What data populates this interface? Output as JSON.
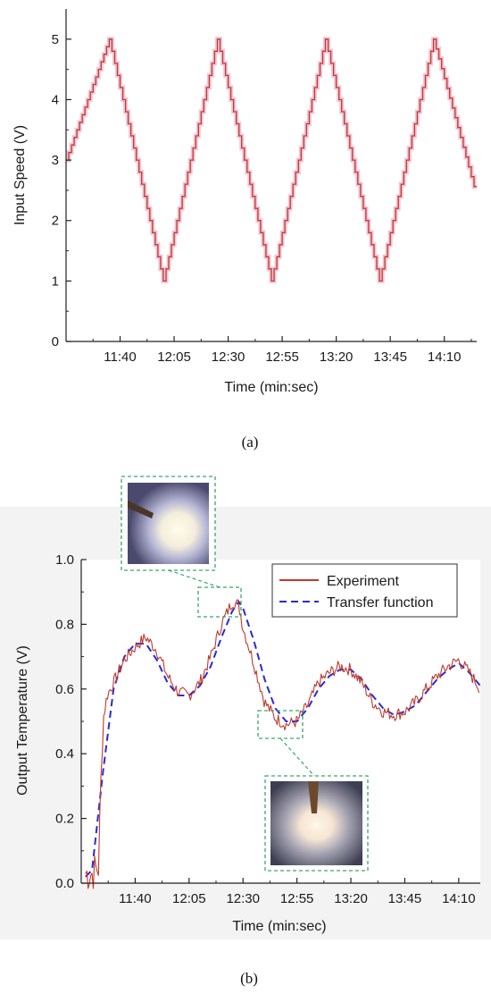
{
  "colors": {
    "experiment": "#c0392b",
    "transfer": "#2a2ad4",
    "inset_border": "#3aa66a",
    "axis": "#222222",
    "panel_b_bg": "#f3f3f3"
  },
  "captions": {
    "a": "(a)",
    "b": "(b)"
  },
  "chart_data": [
    {
      "panel": "a",
      "type": "line",
      "title": "",
      "xlabel": "Time (min:sec)",
      "ylabel": "Input Speed (V)",
      "xlim": [
        "11:15",
        "14:25"
      ],
      "ylim": [
        0,
        5.5
      ],
      "xticks": [
        "11:40",
        "12:05",
        "12:30",
        "12:55",
        "13:20",
        "13:45",
        "14:10"
      ],
      "yticks": [
        "0",
        "1",
        "2",
        "3",
        "4",
        "5"
      ],
      "grid": false,
      "series": [
        {
          "style": "staircase",
          "x": [
            "11:15",
            "11:35",
            "12:00",
            "12:25",
            "12:50",
            "13:15",
            "13:40",
            "14:05",
            "14:25"
          ],
          "values": [
            3,
            5,
            1,
            5,
            1,
            5,
            1,
            5,
            2.4
          ]
        }
      ]
    },
    {
      "panel": "b",
      "type": "line",
      "title": "",
      "xlabel": "Time (min:sec)",
      "ylabel": "Output Temperature (V)",
      "xlim": [
        "11:15",
        "14:20"
      ],
      "ylim": [
        0,
        1.0
      ],
      "xticks": [
        "11:40",
        "12:05",
        "12:30",
        "12:55",
        "13:20",
        "13:45",
        "14:10"
      ],
      "yticks": [
        "0.0",
        "0.2",
        "0.4",
        "0.6",
        "0.8",
        "1.0"
      ],
      "grid": false,
      "legend_position": "top-right",
      "series": [
        {
          "name": "Experiment",
          "style": "solid-noisy",
          "x": [
            "11:17",
            "11:20",
            "11:23",
            "11:25",
            "11:27",
            "11:30",
            "11:35",
            "11:40",
            "11:45",
            "11:50",
            "11:55",
            "12:00",
            "12:05",
            "12:10",
            "12:15",
            "12:20",
            "12:25",
            "12:28",
            "12:30",
            "12:35",
            "12:40",
            "12:45",
            "12:50",
            "12:55",
            "13:00",
            "13:05",
            "13:10",
            "13:15",
            "13:20",
            "13:25",
            "13:30",
            "13:35",
            "13:40",
            "13:45",
            "13:50",
            "13:55",
            "14:00",
            "14:05",
            "14:10",
            "14:15",
            "14:20"
          ],
          "values": [
            0.03,
            0.03,
            0.05,
            0.5,
            0.58,
            0.62,
            0.69,
            0.73,
            0.76,
            0.72,
            0.64,
            0.59,
            0.58,
            0.62,
            0.7,
            0.8,
            0.87,
            0.86,
            0.79,
            0.68,
            0.56,
            0.51,
            0.49,
            0.5,
            0.55,
            0.62,
            0.65,
            0.67,
            0.66,
            0.62,
            0.56,
            0.53,
            0.52,
            0.53,
            0.56,
            0.6,
            0.64,
            0.67,
            0.69,
            0.65,
            0.6
          ]
        },
        {
          "name": "Transfer function",
          "style": "dashed",
          "x": [
            "11:17",
            "11:20",
            "11:25",
            "11:30",
            "11:35",
            "11:40",
            "11:45",
            "11:50",
            "11:55",
            "12:00",
            "12:05",
            "12:10",
            "12:15",
            "12:20",
            "12:25",
            "12:28",
            "12:30",
            "12:35",
            "12:40",
            "12:45",
            "12:50",
            "12:55",
            "13:00",
            "13:05",
            "13:10",
            "13:15",
            "13:20",
            "13:25",
            "13:30",
            "13:35",
            "13:40",
            "13:45",
            "13:50",
            "13:55",
            "14:00",
            "14:05",
            "14:10",
            "14:15",
            "14:20"
          ],
          "values": [
            0.02,
            0.04,
            0.34,
            0.6,
            0.7,
            0.74,
            0.74,
            0.69,
            0.62,
            0.58,
            0.58,
            0.61,
            0.67,
            0.76,
            0.84,
            0.87,
            0.85,
            0.75,
            0.63,
            0.54,
            0.5,
            0.5,
            0.54,
            0.6,
            0.64,
            0.66,
            0.66,
            0.63,
            0.58,
            0.54,
            0.52,
            0.53,
            0.55,
            0.59,
            0.63,
            0.66,
            0.68,
            0.65,
            0.61
          ]
        }
      ]
    }
  ]
}
